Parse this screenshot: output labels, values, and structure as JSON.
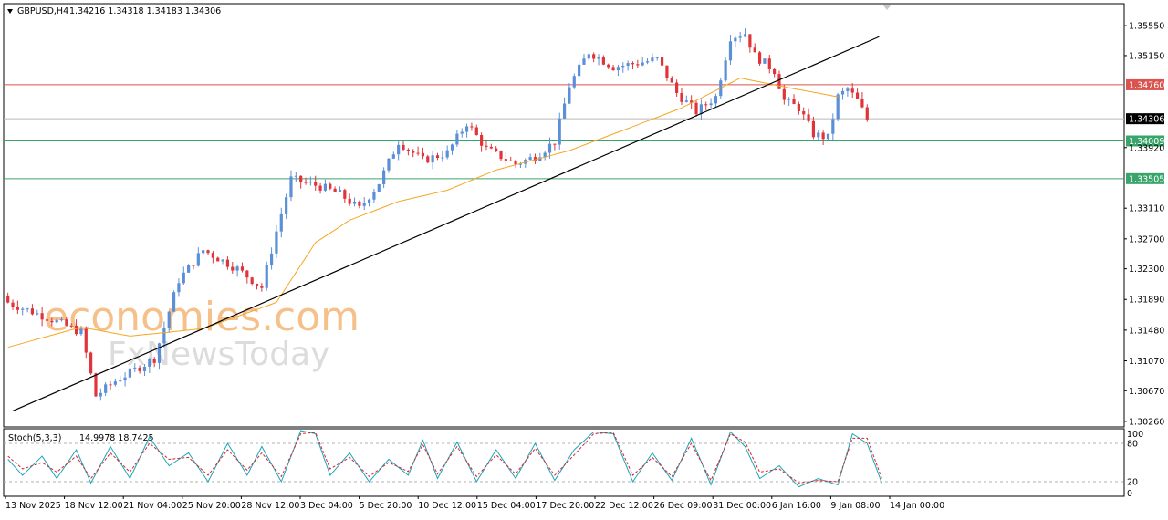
{
  "header": {
    "symbol_info": "GBPUSD,H4",
    "ohlc": "1.34216 1.34318 1.34183 1.34306"
  },
  "watermark": {
    "line1": "economies.com",
    "line2": "FxNewsToday"
  },
  "colors": {
    "bull": "#5b8fd8",
    "bear": "#e0343a",
    "ma": "#f5a623",
    "trendline": "#000000",
    "resistance": "#d9534f",
    "support": "#3aa56a",
    "current": "#000000",
    "stoch_main": "#1aa5b8",
    "stoch_signal": "#d9242b"
  },
  "chart_data": [
    {
      "type": "candlestick",
      "title": "GBPUSD,H4",
      "y_ticks": [
        "1.35550",
        "1.35150",
        "1.34760",
        "1.34306",
        "1.34009",
        "1.33920",
        "1.33505",
        "1.33110",
        "1.32700",
        "1.32300",
        "1.31890",
        "1.31480",
        "1.31070",
        "1.30670",
        "1.30260"
      ],
      "x_ticks": [
        "13 Nov 2025",
        "18 Nov 12:00",
        "21 Nov 04:00",
        "25 Nov 20:00",
        "28 Nov 12:00",
        "3 Dec 04:00",
        "5 Dec 20:00",
        "10 Dec 12:00",
        "15 Dec 04:00",
        "17 Dec 20:00",
        "22 Dec 12:00",
        "26 Dec 09:00",
        "31 Dec 00:00",
        "6 Jan 16:00",
        "9 Jan 08:00",
        "14 Jan 00:00"
      ],
      "ylim": [
        1.3021,
        1.3582
      ],
      "levels": [
        {
          "label": "1.34760",
          "value": 1.3476,
          "kind": "resistance"
        },
        {
          "label": "1.34306",
          "value": 1.34306,
          "kind": "current"
        },
        {
          "label": "1.34009",
          "value": 1.34009,
          "kind": "support"
        },
        {
          "label": "1.33505",
          "value": 1.33505,
          "kind": "support"
        }
      ],
      "trendline": {
        "from": [
          1,
          1.304
        ],
        "to": [
          165,
          1.3514
        ]
      },
      "moving_average_close_anchors": [
        [
          0,
          1.3125
        ],
        [
          15,
          1.3152
        ],
        [
          25,
          1.314
        ],
        [
          40,
          1.315
        ],
        [
          55,
          1.3185
        ],
        [
          63,
          1.3265
        ],
        [
          70,
          1.3295
        ],
        [
          80,
          1.332
        ],
        [
          90,
          1.3335
        ],
        [
          100,
          1.3362
        ],
        [
          115,
          1.3388
        ],
        [
          128,
          1.342
        ],
        [
          138,
          1.3445
        ],
        [
          150,
          1.3485
        ],
        [
          160,
          1.3472
        ],
        [
          170,
          1.346
        ]
      ],
      "close_anchors": [
        [
          0,
          1.3185
        ],
        [
          8,
          1.3165
        ],
        [
          15,
          1.3145
        ],
        [
          18,
          1.306
        ],
        [
          22,
          1.308
        ],
        [
          30,
          1.311
        ],
        [
          35,
          1.3215
        ],
        [
          40,
          1.3255
        ],
        [
          47,
          1.323
        ],
        [
          52,
          1.3205
        ],
        [
          55,
          1.328
        ],
        [
          58,
          1.335
        ],
        [
          64,
          1.334
        ],
        [
          68,
          1.333
        ],
        [
          72,
          1.331
        ],
        [
          76,
          1.3345
        ],
        [
          80,
          1.34
        ],
        [
          85,
          1.3375
        ],
        [
          90,
          1.3385
        ],
        [
          94,
          1.3425
        ],
        [
          98,
          1.339
        ],
        [
          101,
          1.338
        ],
        [
          104,
          1.337
        ],
        [
          108,
          1.338
        ],
        [
          112,
          1.34
        ],
        [
          115,
          1.3475
        ],
        [
          119,
          1.352
        ],
        [
          124,
          1.35
        ],
        [
          129,
          1.3505
        ],
        [
          133,
          1.351
        ],
        [
          137,
          1.3465
        ],
        [
          141,
          1.344
        ],
        [
          145,
          1.346
        ],
        [
          148,
          1.354
        ],
        [
          151,
          1.3545
        ],
        [
          153,
          1.3515
        ],
        [
          157,
          1.3495
        ],
        [
          159,
          1.3455
        ],
        [
          162,
          1.3445
        ],
        [
          165,
          1.341
        ],
        [
          168,
          1.3405
        ],
        [
          170,
          1.346
        ],
        [
          172,
          1.347
        ],
        [
          174,
          1.3455
        ],
        [
          176,
          1.343
        ]
      ]
    },
    {
      "type": "line",
      "title": "Stoch(5,3,3)",
      "values_label": "14.9978 18.7425",
      "ylim": [
        0,
        100
      ],
      "y_ticks": [
        "100",
        "80",
        "20",
        "0"
      ],
      "levels": [
        80,
        20
      ],
      "series": [
        {
          "name": "main",
          "anchors": [
            [
              0,
              55
            ],
            [
              3,
              30
            ],
            [
              7,
              60
            ],
            [
              10,
              25
            ],
            [
              14,
              70
            ],
            [
              17,
              18
            ],
            [
              21,
              75
            ],
            [
              25,
              25
            ],
            [
              29,
              90
            ],
            [
              33,
              45
            ],
            [
              37,
              65
            ],
            [
              41,
              20
            ],
            [
              45,
              80
            ],
            [
              49,
              30
            ],
            [
              52,
              75
            ],
            [
              56,
              20
            ],
            [
              60,
              100
            ],
            [
              63,
              95
            ],
            [
              66,
              30
            ],
            [
              70,
              65
            ],
            [
              74,
              20
            ],
            [
              78,
              55
            ],
            [
              82,
              30
            ],
            [
              85,
              85
            ],
            [
              88,
              25
            ],
            [
              92,
              82
            ],
            [
              96,
              20
            ],
            [
              100,
              70
            ],
            [
              104,
              25
            ],
            [
              108,
              80
            ],
            [
              112,
              22
            ],
            [
              116,
              70
            ],
            [
              120,
              98
            ],
            [
              124,
              95
            ],
            [
              128,
              20
            ],
            [
              132,
              65
            ],
            [
              136,
              22
            ],
            [
              140,
              88
            ],
            [
              144,
              15
            ],
            [
              148,
              98
            ],
            [
              151,
              75
            ],
            [
              154,
              25
            ],
            [
              158,
              45
            ],
            [
              162,
              12
            ],
            [
              166,
              25
            ],
            [
              170,
              15
            ],
            [
              173,
              95
            ],
            [
              176,
              80
            ],
            [
              179,
              18
            ]
          ]
        },
        {
          "name": "signal",
          "anchors": [
            [
              0,
              60
            ],
            [
              3,
              40
            ],
            [
              7,
              50
            ],
            [
              10,
              35
            ],
            [
              14,
              60
            ],
            [
              17,
              25
            ],
            [
              21,
              65
            ],
            [
              25,
              35
            ],
            [
              29,
              80
            ],
            [
              33,
              55
            ],
            [
              37,
              58
            ],
            [
              41,
              30
            ],
            [
              45,
              70
            ],
            [
              49,
              38
            ],
            [
              52,
              65
            ],
            [
              56,
              28
            ],
            [
              60,
              95
            ],
            [
              63,
              97
            ],
            [
              66,
              40
            ],
            [
              70,
              58
            ],
            [
              74,
              28
            ],
            [
              78,
              50
            ],
            [
              82,
              36
            ],
            [
              85,
              78
            ],
            [
              88,
              32
            ],
            [
              92,
              75
            ],
            [
              96,
              28
            ],
            [
              100,
              62
            ],
            [
              104,
              32
            ],
            [
              108,
              72
            ],
            [
              112,
              30
            ],
            [
              116,
              62
            ],
            [
              120,
              95
            ],
            [
              124,
              97
            ],
            [
              128,
              30
            ],
            [
              132,
              58
            ],
            [
              136,
              28
            ],
            [
              140,
              80
            ],
            [
              144,
              22
            ],
            [
              148,
              95
            ],
            [
              151,
              82
            ],
            [
              154,
              35
            ],
            [
              158,
              40
            ],
            [
              162,
              18
            ],
            [
              166,
              22
            ],
            [
              170,
              20
            ],
            [
              173,
              88
            ],
            [
              176,
              88
            ],
            [
              179,
              25
            ]
          ]
        }
      ]
    }
  ]
}
